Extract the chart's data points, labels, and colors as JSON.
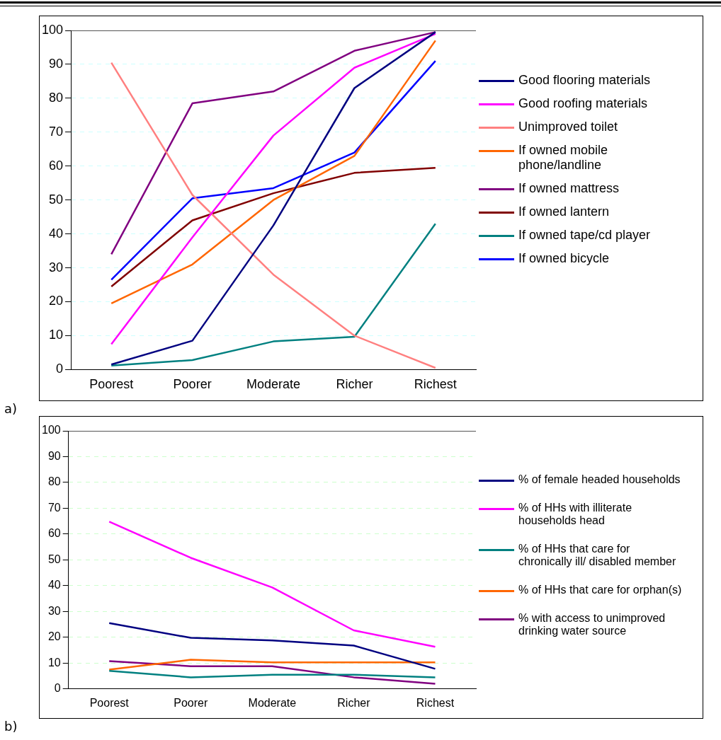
{
  "chart_data": [
    {
      "type": "line",
      "categories": [
        "Poorest",
        "Poorer",
        "Moderate",
        "Richer",
        "Richest"
      ],
      "ylim": [
        0,
        100
      ],
      "yticks": [
        0,
        10,
        20,
        30,
        40,
        50,
        60,
        70,
        80,
        90,
        100
      ],
      "grid": "y",
      "legend": "right",
      "marker": "none",
      "annotations": [
        "a)"
      ],
      "series": [
        {
          "name": "Good flooring materials",
          "color": "#000080",
          "values": [
            1.5,
            8.5,
            42.5,
            83,
            99.5
          ]
        },
        {
          "name": "Good roofing materials",
          "color": "#ff00ff",
          "values": [
            7.5,
            39,
            69,
            89,
            99
          ]
        },
        {
          "name": "Unimproved toilet",
          "color": "#ff8080",
          "values": [
            90.5,
            51.5,
            28,
            10,
            0.5
          ]
        },
        {
          "name": "If owned mobile phone/landline",
          "color": "#ff6600",
          "values": [
            19.5,
            31,
            50,
            63,
            97
          ]
        },
        {
          "name": "If owned mattress",
          "color": "#800080",
          "values": [
            34,
            78.5,
            82,
            94,
            99.5
          ]
        },
        {
          "name": "If owned lantern",
          "color": "#800000",
          "values": [
            24.5,
            44,
            52,
            58,
            59.5
          ]
        },
        {
          "name": "If owned tape/cd player",
          "color": "#008080",
          "values": [
            1.2,
            2.8,
            8.3,
            9.7,
            43
          ]
        },
        {
          "name": "If owned bicycle",
          "color": "#0000ff",
          "values": [
            26.5,
            50.5,
            53.5,
            64,
            91
          ]
        }
      ]
    },
    {
      "type": "line",
      "categories": [
        "Poorest",
        "Poorer",
        "Moderate",
        "Richer",
        "Richest"
      ],
      "ylim": [
        0,
        100
      ],
      "yticks": [
        0,
        10,
        20,
        30,
        40,
        50,
        60,
        70,
        80,
        90,
        100
      ],
      "grid": "y",
      "legend": "right",
      "marker": "none",
      "annotations": [
        "b)"
      ],
      "series": [
        {
          "name": "% of female headed households",
          "color": "#000080",
          "values": [
            25.5,
            19.8,
            18.8,
            16.8,
            7.8
          ]
        },
        {
          "name": "% of HHs with illiterate households head",
          "color": "#ff00ff",
          "values": [
            64.8,
            50.8,
            39.3,
            22.7,
            16.3
          ]
        },
        {
          "name": "% of HHs that care for chronically ill/ disabled member",
          "color": "#008080",
          "values": [
            7,
            4.5,
            5.5,
            5.5,
            4.5
          ]
        },
        {
          "name": "% of HHs that care for orphan(s)",
          "color": "#ff6600",
          "values": [
            7.5,
            11.3,
            10.3,
            10.3,
            10.3
          ]
        },
        {
          "name": "% with access to unimproved drinking water source",
          "color": "#800080",
          "values": [
            10.8,
            8.8,
            8.8,
            4.5,
            2
          ]
        }
      ]
    }
  ]
}
